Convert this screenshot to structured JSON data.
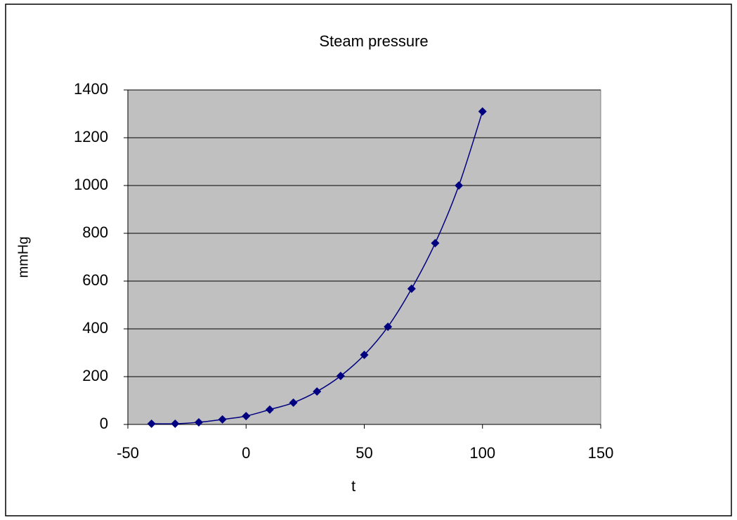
{
  "chart_data": {
    "type": "scatter",
    "title": "Steam pressure",
    "xlabel": "t",
    "ylabel": "mmHg",
    "x": [
      -40,
      -30,
      -20,
      -10,
      0,
      10,
      20,
      30,
      40,
      50,
      60,
      70,
      80,
      90,
      100
    ],
    "values": [
      3,
      3,
      9,
      21,
      35,
      62,
      91,
      138,
      203,
      291,
      409,
      568,
      759,
      1000,
      1310
    ],
    "color": "#000080",
    "line": "smooth",
    "plot_background": "#c0c0c0",
    "xlim": [
      -50,
      150
    ],
    "xticks": [
      -50,
      0,
      50,
      100,
      150
    ],
    "ylim": [
      0,
      1400
    ],
    "yticks": [
      0,
      200,
      400,
      600,
      800,
      1000,
      1200,
      1400
    ],
    "grid": true
  }
}
